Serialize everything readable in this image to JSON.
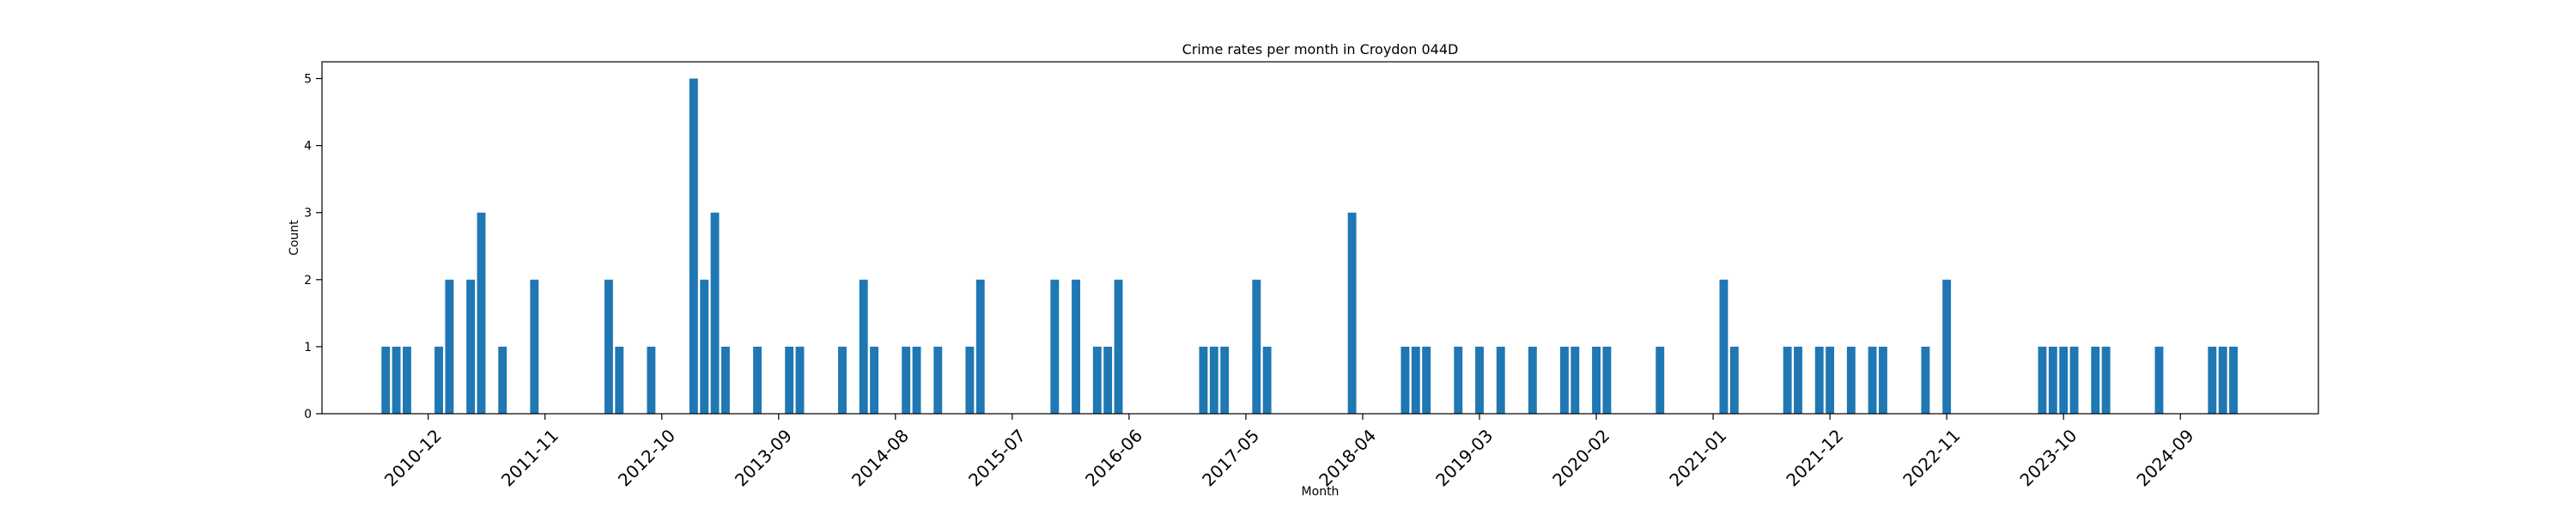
{
  "chart_data": {
    "type": "bar",
    "title": "Crime rates per month in Croydon 044D",
    "xlabel": "Month",
    "ylabel": "Count",
    "ylim": [
      0,
      5.25
    ],
    "xlim": [
      "2010-02",
      "2025-10"
    ],
    "yticks": [
      0,
      1,
      2,
      3,
      4,
      5
    ],
    "xticks": [
      "2010-12",
      "2011-11",
      "2012-10",
      "2013-09",
      "2014-08",
      "2015-07",
      "2016-06",
      "2017-05",
      "2018-04",
      "2019-03",
      "2020-02",
      "2021-01",
      "2021-12",
      "2022-11",
      "2023-10",
      "2024-09"
    ],
    "bar_color": "#1f77b4",
    "grid": false,
    "legend": "none",
    "points": [
      {
        "x": "2010-08",
        "y": 1
      },
      {
        "x": "2010-09",
        "y": 1
      },
      {
        "x": "2010-10",
        "y": 1
      },
      {
        "x": "2011-01",
        "y": 1
      },
      {
        "x": "2011-02",
        "y": 2
      },
      {
        "x": "2011-04",
        "y": 2
      },
      {
        "x": "2011-05",
        "y": 3
      },
      {
        "x": "2011-07",
        "y": 1
      },
      {
        "x": "2011-10",
        "y": 2
      },
      {
        "x": "2012-05",
        "y": 2
      },
      {
        "x": "2012-06",
        "y": 1
      },
      {
        "x": "2012-09",
        "y": 1
      },
      {
        "x": "2013-01",
        "y": 5
      },
      {
        "x": "2013-02",
        "y": 2
      },
      {
        "x": "2013-03",
        "y": 3
      },
      {
        "x": "2013-04",
        "y": 1
      },
      {
        "x": "2013-07",
        "y": 1
      },
      {
        "x": "2013-10",
        "y": 1
      },
      {
        "x": "2013-11",
        "y": 1
      },
      {
        "x": "2014-03",
        "y": 1
      },
      {
        "x": "2014-05",
        "y": 2
      },
      {
        "x": "2014-06",
        "y": 1
      },
      {
        "x": "2014-09",
        "y": 1
      },
      {
        "x": "2014-10",
        "y": 1
      },
      {
        "x": "2014-12",
        "y": 1
      },
      {
        "x": "2015-03",
        "y": 1
      },
      {
        "x": "2015-04",
        "y": 2
      },
      {
        "x": "2015-11",
        "y": 2
      },
      {
        "x": "2016-01",
        "y": 2
      },
      {
        "x": "2016-03",
        "y": 1
      },
      {
        "x": "2016-04",
        "y": 1
      },
      {
        "x": "2016-05",
        "y": 2
      },
      {
        "x": "2017-01",
        "y": 1
      },
      {
        "x": "2017-02",
        "y": 1
      },
      {
        "x": "2017-03",
        "y": 1
      },
      {
        "x": "2017-06",
        "y": 2
      },
      {
        "x": "2017-07",
        "y": 1
      },
      {
        "x": "2018-03",
        "y": 3
      },
      {
        "x": "2018-08",
        "y": 1
      },
      {
        "x": "2018-09",
        "y": 1
      },
      {
        "x": "2018-10",
        "y": 1
      },
      {
        "x": "2019-01",
        "y": 1
      },
      {
        "x": "2019-03",
        "y": 1
      },
      {
        "x": "2019-05",
        "y": 1
      },
      {
        "x": "2019-08",
        "y": 1
      },
      {
        "x": "2019-11",
        "y": 1
      },
      {
        "x": "2019-12",
        "y": 1
      },
      {
        "x": "2020-02",
        "y": 1
      },
      {
        "x": "2020-03",
        "y": 1
      },
      {
        "x": "2020-08",
        "y": 1
      },
      {
        "x": "2021-02",
        "y": 2
      },
      {
        "x": "2021-03",
        "y": 1
      },
      {
        "x": "2021-08",
        "y": 1
      },
      {
        "x": "2021-09",
        "y": 1
      },
      {
        "x": "2021-11",
        "y": 1
      },
      {
        "x": "2021-12",
        "y": 1
      },
      {
        "x": "2022-02",
        "y": 1
      },
      {
        "x": "2022-04",
        "y": 1
      },
      {
        "x": "2022-05",
        "y": 1
      },
      {
        "x": "2022-09",
        "y": 1
      },
      {
        "x": "2022-11",
        "y": 2
      },
      {
        "x": "2023-08",
        "y": 1
      },
      {
        "x": "2023-09",
        "y": 1
      },
      {
        "x": "2023-10",
        "y": 1
      },
      {
        "x": "2023-11",
        "y": 1
      },
      {
        "x": "2024-01",
        "y": 1
      },
      {
        "x": "2024-02",
        "y": 1
      },
      {
        "x": "2024-07",
        "y": 1
      },
      {
        "x": "2024-12",
        "y": 1
      },
      {
        "x": "2025-01",
        "y": 1
      },
      {
        "x": "2025-02",
        "y": 1
      }
    ]
  }
}
